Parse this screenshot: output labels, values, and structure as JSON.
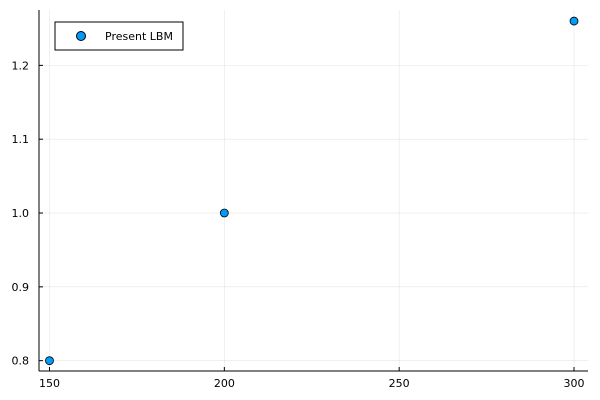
{
  "chart_data": {
    "type": "scatter",
    "title": "",
    "xlabel": "",
    "ylabel": "",
    "xlim": [
      147,
      304
    ],
    "ylim": [
      0.786,
      1.275
    ],
    "x_ticks": [
      150,
      200,
      250,
      300
    ],
    "y_ticks": [
      0.8,
      0.9,
      1.0,
      1.1,
      1.2
    ],
    "x_tick_labels": [
      "150",
      "200",
      "250",
      "300"
    ],
    "y_tick_labels": [
      "0.8",
      "0.9",
      "1.0",
      "1.1",
      "1.2"
    ],
    "grid": true,
    "legend_position": "top-left",
    "series": [
      {
        "name": "Present LBM",
        "color": "#009AFA",
        "marker": "circle",
        "x": [
          150,
          200,
          300
        ],
        "y": [
          0.8,
          1.0,
          1.26
        ]
      }
    ]
  }
}
